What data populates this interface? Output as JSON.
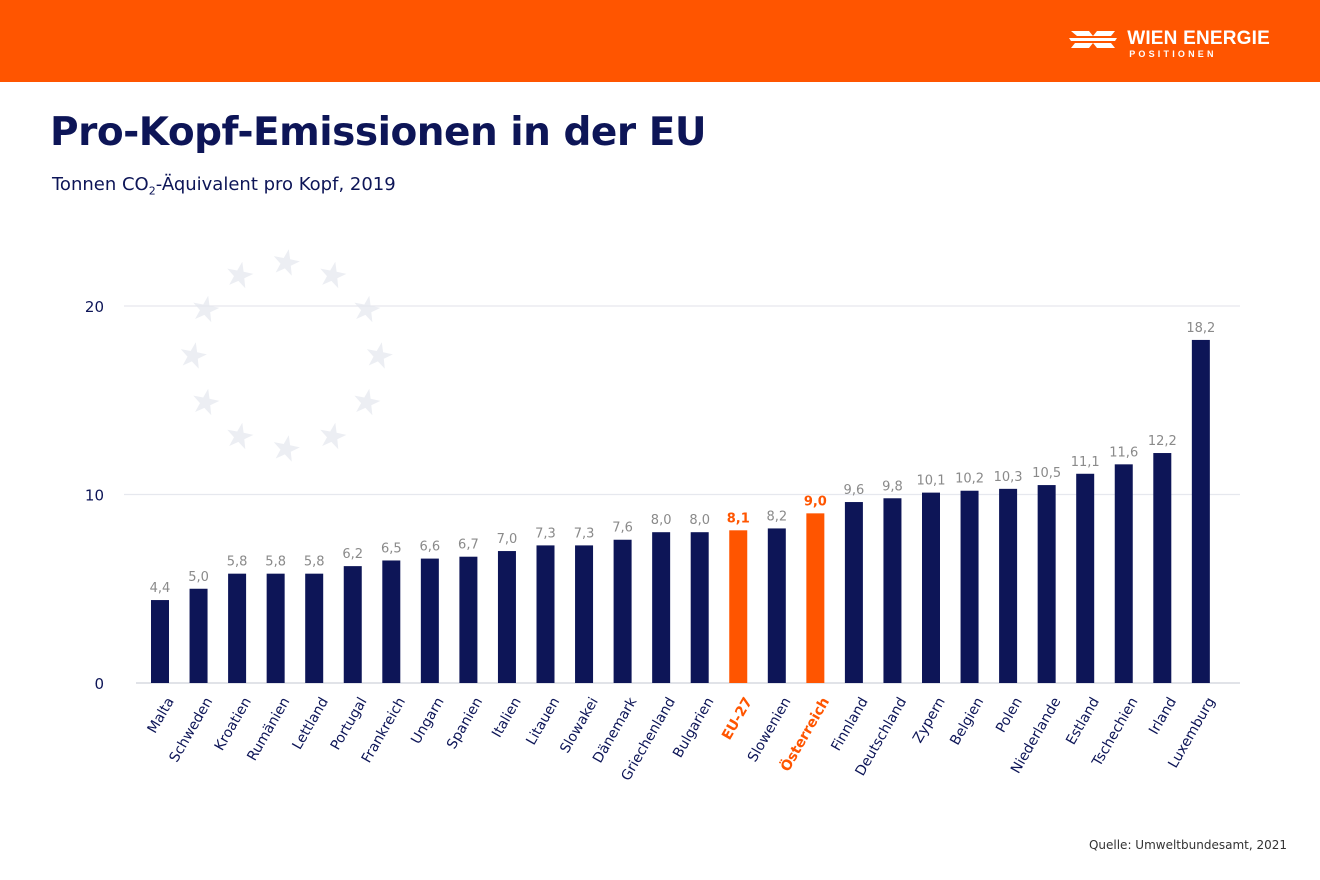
{
  "header": {
    "brand_color": "#ff5500",
    "logo_text": "WIEN ENERGIE",
    "logo_subtext": "POSITIONEN"
  },
  "title": "Pro-Kopf-Emissionen in der EU",
  "subtitle": {
    "before": "Tonnen CO",
    "sub": "2",
    "after": "-Äquivalent pro Kopf, 2019"
  },
  "source": "Quelle: Umweltbundesamt, 2021",
  "chart_data": {
    "type": "bar",
    "title": "Pro-Kopf-Emissionen in der EU",
    "ylabel": "Tonnen CO2-Äquivalent pro Kopf, 2019",
    "ylim": [
      0,
      20
    ],
    "yticks": [
      0,
      10,
      20
    ],
    "grid": true,
    "categories": [
      "Malta",
      "Schweden",
      "Kroatien",
      "Rumänien",
      "Lettland",
      "Portugal",
      "Frankreich",
      "Ungarn",
      "Spanien",
      "Italien",
      "Litauen",
      "Slowakei",
      "Dänemark",
      "Griechenland",
      "Bulgarien",
      "EU-27",
      "Slowenien",
      "Österreich",
      "Finnland",
      "Deutschland",
      "Zypern",
      "Belgien",
      "Polen",
      "Niederlande",
      "Estland",
      "Tschechien",
      "Irland",
      "Luxemburg"
    ],
    "values": [
      4.4,
      5.0,
      5.8,
      5.8,
      5.8,
      6.2,
      6.5,
      6.6,
      6.7,
      7.0,
      7.3,
      7.3,
      7.6,
      8.0,
      8.0,
      8.1,
      8.2,
      9.0,
      9.6,
      9.8,
      10.1,
      10.2,
      10.3,
      10.5,
      11.1,
      11.6,
      12.2,
      18.2
    ],
    "value_labels": [
      "4,4",
      "5,0",
      "5,8",
      "5,8",
      "5,8",
      "6,2",
      "6,5",
      "6,6",
      "6,7",
      "7,0",
      "7,3",
      "7,3",
      "7,6",
      "8,0",
      "8,0",
      "8,1",
      "8,2",
      "9,0",
      "9,6",
      "9,8",
      "10,1",
      "10,2",
      "10,3",
      "10,5",
      "11,1",
      "11,6",
      "12,2",
      "18,2"
    ],
    "highlighted": [
      "EU-27",
      "Österreich"
    ],
    "colors": {
      "default": "#0d1557",
      "highlight": "#ff5500",
      "value_label": "#8a8a8a",
      "highlight_label": "#ff5500"
    }
  }
}
